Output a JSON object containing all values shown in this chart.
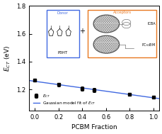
{
  "x_data": [
    0.0,
    0.2,
    0.4,
    0.5,
    0.8,
    1.0
  ],
  "y_data": [
    1.265,
    1.235,
    1.205,
    1.195,
    1.165,
    1.145
  ],
  "y_err": [
    0.008,
    0.012,
    0.015,
    0.015,
    0.008,
    0.008
  ],
  "xlabel": "PCBM Fraction",
  "ylabel": "$E_{CT}$ (eV)",
  "xlim": [
    -0.05,
    1.05
  ],
  "ylim": [
    1.05,
    1.8
  ],
  "xticks": [
    0.0,
    0.2,
    0.4,
    0.6,
    0.8,
    1.0
  ],
  "yticks": [
    1.2,
    1.4,
    1.6,
    1.8
  ],
  "line_color": "#4169E1",
  "marker_color": "black",
  "legend_ect": "$E_{CT}$",
  "legend_gaussian": "Gaussian model fit of $E_{CT}$",
  "donor_label": "Donor",
  "donor_molecule": "P3HT",
  "acceptor_label": "Acceptors",
  "acceptor1": "ICBA",
  "acceptor2": "PC$_{61}$BM",
  "donor_box_color": "#4169E1",
  "acceptor_box_color": "#E87820"
}
